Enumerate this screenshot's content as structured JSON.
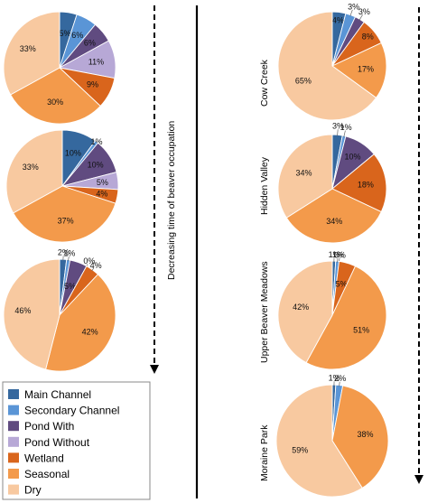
{
  "chart_data": {
    "type": "pie",
    "categories": [
      "Main Channel",
      "Secondary Channel",
      "Pond With",
      "Pond Without",
      "Wetland",
      "Seasonal",
      "Dry"
    ],
    "colors": [
      "#35689e",
      "#5a95d6",
      "#604b80",
      "#b7a8d6",
      "#d9651c",
      "#f39a4b",
      "#f8c9a0"
    ],
    "left_annotation": "Decreasing time of beaver occupation",
    "left_pies": [
      {
        "values": [
          5,
          6,
          6,
          11,
          9,
          30,
          33
        ],
        "labels": [
          "5%",
          "6%",
          "6%",
          "11%",
          "9%",
          "30%",
          "33%"
        ]
      },
      {
        "values": [
          10,
          1,
          10,
          5,
          4,
          37,
          33
        ],
        "labels": [
          "10%",
          "1%",
          "10%",
          "5%",
          "4%",
          "37%",
          "33%"
        ]
      },
      {
        "values": [
          2,
          1,
          5,
          0,
          4,
          42,
          46
        ],
        "labels": [
          "2%",
          "1%",
          "5%",
          "0%",
          "4%",
          "42%",
          "46%"
        ]
      }
    ],
    "right_pies": [
      {
        "site": "Cow Creek",
        "values": [
          4,
          3,
          3,
          8,
          17,
          65
        ],
        "labels": [
          "4%",
          "3%",
          "3%",
          "8%",
          "17%",
          "65%"
        ],
        "color_idx": [
          0,
          1,
          2,
          4,
          5,
          6
        ]
      },
      {
        "site": "Hidden Valley",
        "values": [
          3,
          1,
          10,
          18,
          34,
          34
        ],
        "labels": [
          "3%",
          "1%",
          "10%",
          "18%",
          "34%",
          "34%"
        ],
        "color_idx": [
          0,
          1,
          2,
          4,
          5,
          6
        ]
      },
      {
        "site": "Upper Beaver Meadows",
        "values": [
          1,
          1,
          0,
          5,
          51,
          42
        ],
        "labels": [
          "1%",
          "1%",
          "0%",
          "5%",
          "51%",
          "42%"
        ],
        "color_idx": [
          0,
          1,
          2,
          4,
          5,
          6
        ]
      },
      {
        "site": "Moraine Park",
        "values": [
          1,
          2,
          38,
          59
        ],
        "labels": [
          "1%",
          "2%",
          "38%",
          "59%"
        ],
        "color_idx": [
          0,
          1,
          5,
          6
        ]
      }
    ]
  }
}
